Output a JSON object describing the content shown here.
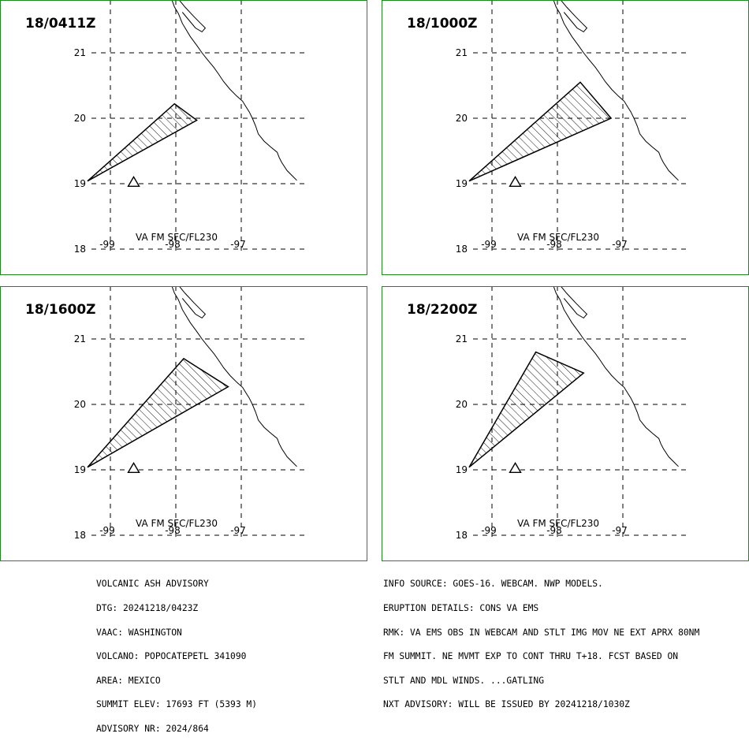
{
  "panels": [
    {
      "time_label": "18/0411Z",
      "fl_label": "VA FM SFC/FL230",
      "ash_polygon": [
        [
          -99.35,
          19.04
        ],
        [
          -98.02,
          20.22
        ],
        [
          -97.68,
          19.97
        ],
        [
          -99.35,
          19.04
        ]
      ]
    },
    {
      "time_label": "18/1000Z",
      "fl_label": "VA FM SFC/FL230",
      "ash_polygon": [
        [
          -99.35,
          19.04
        ],
        [
          -97.65,
          20.55
        ],
        [
          -97.18,
          20.0
        ],
        [
          -99.35,
          19.04
        ]
      ]
    },
    {
      "time_label": "18/1600Z",
      "fl_label": "VA FM SFC/FL230",
      "ash_polygon": [
        [
          -99.35,
          19.04
        ],
        [
          -97.88,
          20.7
        ],
        [
          -97.2,
          20.27
        ],
        [
          -99.35,
          19.04
        ]
      ]
    },
    {
      "time_label": "18/2200Z",
      "fl_label": "VA FM SFC/FL230",
      "ash_polygon": [
        [
          -99.35,
          19.04
        ],
        [
          -98.33,
          20.8
        ],
        [
          -97.6,
          20.48
        ],
        [
          -99.35,
          19.04
        ]
      ]
    }
  ],
  "grid": {
    "lat_ticks": [
      "21",
      "20",
      "19",
      "18"
    ],
    "lon_ticks": [
      "-99",
      "-98",
      "-97"
    ]
  },
  "volcano": {
    "name": "POPOCATEPETL",
    "lat": 19.02,
    "lon": -98.62
  },
  "coastline": [
    [
      -98.06,
      21.81
    ],
    [
      -98.02,
      21.7
    ],
    [
      -97.96,
      21.6
    ],
    [
      -97.9,
      21.45
    ],
    [
      -97.78,
      21.25
    ],
    [
      -97.67,
      21.1
    ],
    [
      -97.6,
      21.0
    ],
    [
      -97.52,
      20.9
    ],
    [
      -97.42,
      20.78
    ],
    [
      -97.35,
      20.68
    ],
    [
      -97.27,
      20.56
    ],
    [
      -97.17,
      20.44
    ],
    [
      -97.07,
      20.34
    ],
    [
      -96.98,
      20.26
    ],
    [
      -96.93,
      20.18
    ],
    [
      -96.88,
      20.1
    ],
    [
      -96.83,
      20.0
    ],
    [
      -96.78,
      19.88
    ],
    [
      -96.74,
      19.76
    ],
    [
      -96.65,
      19.65
    ],
    [
      -96.55,
      19.56
    ],
    [
      -96.45,
      19.48
    ],
    [
      -96.42,
      19.4
    ],
    [
      -96.38,
      19.32
    ],
    [
      -96.3,
      19.2
    ],
    [
      -96.22,
      19.12
    ],
    [
      -96.15,
      19.05
    ]
  ],
  "lagoon": [
    [
      -97.95,
      21.81
    ],
    [
      -97.86,
      21.7
    ],
    [
      -97.72,
      21.55
    ],
    [
      -97.62,
      21.45
    ],
    [
      -97.55,
      21.38
    ],
    [
      -97.6,
      21.32
    ],
    [
      -97.7,
      21.38
    ],
    [
      -97.8,
      21.5
    ],
    [
      -97.9,
      21.62
    ]
  ],
  "colors": {
    "panel_border": "#1a8a1a",
    "grid": "#000000",
    "ink": "#000000"
  },
  "advisory_left": [
    "VOLCANIC ASH ADVISORY",
    "DTG: 20241218/0423Z",
    "VAAC: WASHINGTON",
    "VOLCANO: POPOCATEPETL 341090",
    "AREA: MEXICO",
    "SUMMIT ELEV: 17693 FT (5393 M)",
    "ADVISORY NR: 2024/864"
  ],
  "advisory_right": [
    "INFO SOURCE: GOES-16. WEBCAM. NWP MODELS.",
    "ERUPTION DETAILS: CONS VA EMS",
    "RMK: VA EMS OBS IN WEBCAM AND STLT IMG MOV NE EXT APRX 80NM",
    "FM SUMMIT. NE MVMT EXP TO CONT THRU T+18. FCST BASED ON",
    "STLT AND MDL WINDS. ...GATLING",
    "NXT ADVISORY: WILL BE ISSUED BY 20241218/1030Z"
  ]
}
